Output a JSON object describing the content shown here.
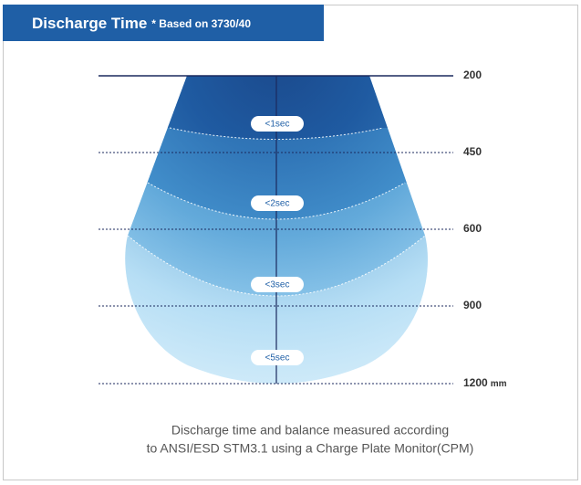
{
  "header": {
    "title": "Discharge Time",
    "note": "* Based on 3730/40"
  },
  "distances": [
    "200",
    "450",
    "600",
    "900",
    "1200"
  ],
  "distance_unit": "mm",
  "zones": [
    "<1sec",
    "<2sec",
    "<3sec",
    "<5sec"
  ],
  "caption": [
    "Discharge time and balance measured according",
    "to ANSI/ESD STM3.1 using a Charge Plate Monitor(CPM)"
  ]
}
